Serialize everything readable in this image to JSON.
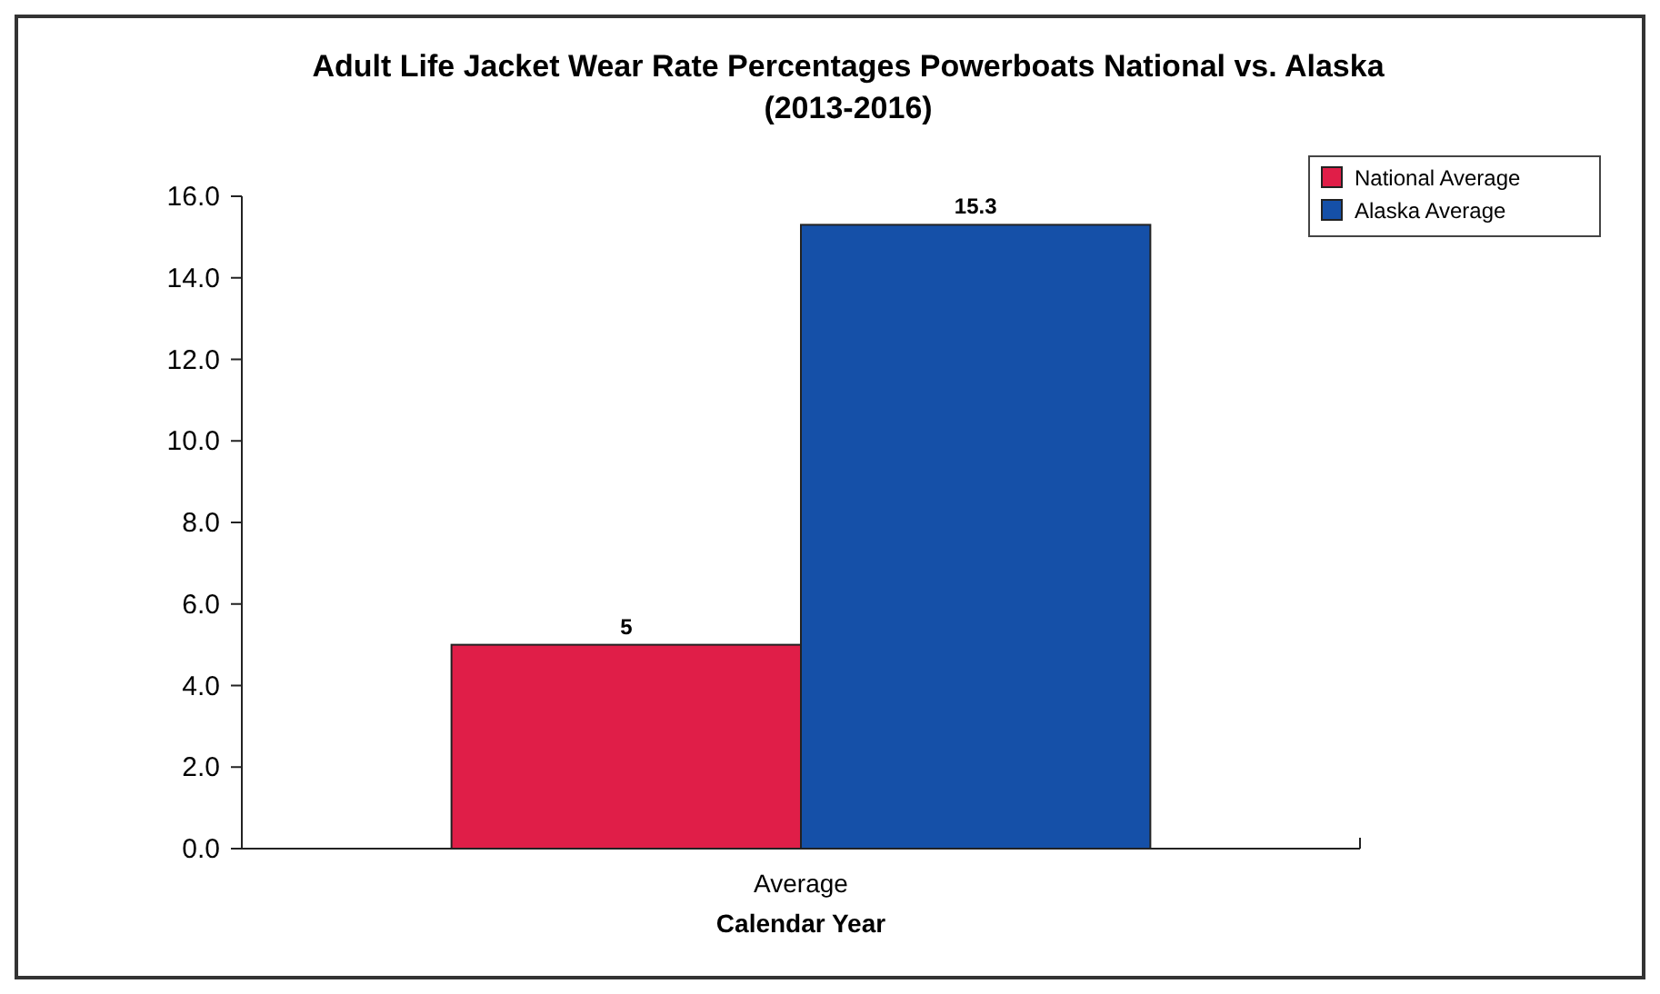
{
  "chart_data": {
    "type": "bar",
    "title": "Adult Life Jacket Wear Rate Percentages Powerboats National vs. Alaska",
    "subtitle": "(2013-2016)",
    "xlabel": "Calendar Year",
    "categories": [
      "Average"
    ],
    "series": [
      {
        "name": "National Average",
        "color": "#e01e48",
        "values": [
          5
        ]
      },
      {
        "name": "Alaska Average",
        "color": "#1550a8",
        "values": [
          15.3
        ]
      }
    ],
    "ylim": [
      0,
      16
    ],
    "yticks": [
      {
        "value": 0,
        "label": "0.0"
      },
      {
        "value": 2,
        "label": "2.0"
      },
      {
        "value": 4,
        "label": "4.0"
      },
      {
        "value": 6,
        "label": "6.0"
      },
      {
        "value": 8,
        "label": "8.0"
      },
      {
        "value": 10,
        "label": "10.0"
      },
      {
        "value": 12,
        "label": "12.0"
      },
      {
        "value": 14,
        "label": "14.0"
      },
      {
        "value": 16,
        "label": "16.0"
      }
    ],
    "data_labels": true,
    "legend": "top right",
    "grid": false
  }
}
